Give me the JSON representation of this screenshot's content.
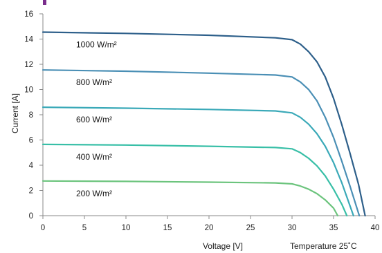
{
  "chart_data": {
    "type": "line",
    "title": "",
    "xlabel": "Voltage [V]",
    "ylabel": "Current [A]",
    "annotation": "Temperature 25˚C",
    "xlim": [
      0,
      40
    ],
    "ylim": [
      0,
      16
    ],
    "xticks": [
      0,
      5,
      10,
      15,
      20,
      25,
      30,
      35,
      40
    ],
    "yticks": [
      0,
      2,
      4,
      6,
      8,
      10,
      12,
      14,
      16
    ],
    "grid": false,
    "legend": "inline labels",
    "series": [
      {
        "name": "1000 W/m²",
        "color": "#2d5f8a",
        "points": [
          [
            0,
            14.55
          ],
          [
            10,
            14.45
          ],
          [
            20,
            14.3
          ],
          [
            28,
            14.1
          ],
          [
            30,
            13.95
          ],
          [
            31,
            13.6
          ],
          [
            32,
            13.0
          ],
          [
            33,
            12.2
          ],
          [
            34,
            11.0
          ],
          [
            35,
            9.3
          ],
          [
            36,
            7.2
          ],
          [
            37,
            4.9
          ],
          [
            38,
            2.5
          ],
          [
            38.8,
            0
          ]
        ]
      },
      {
        "name": "800 W/m²",
        "color": "#4a8fb5",
        "points": [
          [
            0,
            11.55
          ],
          [
            10,
            11.45
          ],
          [
            20,
            11.3
          ],
          [
            28,
            11.15
          ],
          [
            30,
            11.0
          ],
          [
            31,
            10.6
          ],
          [
            32,
            10.0
          ],
          [
            33,
            9.1
          ],
          [
            34,
            7.8
          ],
          [
            35,
            6.2
          ],
          [
            36,
            4.3
          ],
          [
            37,
            2.3
          ],
          [
            38.1,
            0
          ]
        ]
      },
      {
        "name": "600 W/m²",
        "color": "#3aa9b8",
        "points": [
          [
            0,
            8.6
          ],
          [
            10,
            8.52
          ],
          [
            20,
            8.42
          ],
          [
            28,
            8.3
          ],
          [
            30,
            8.15
          ],
          [
            31,
            7.8
          ],
          [
            32,
            7.25
          ],
          [
            33,
            6.5
          ],
          [
            34,
            5.5
          ],
          [
            35,
            4.2
          ],
          [
            36,
            2.6
          ],
          [
            37.4,
            0
          ]
        ]
      },
      {
        "name": "400 W/m²",
        "color": "#38bfa7",
        "points": [
          [
            0,
            5.65
          ],
          [
            10,
            5.6
          ],
          [
            20,
            5.5
          ],
          [
            28,
            5.4
          ],
          [
            30,
            5.3
          ],
          [
            31,
            5.0
          ],
          [
            32,
            4.55
          ],
          [
            33,
            3.95
          ],
          [
            34,
            3.15
          ],
          [
            35,
            2.1
          ],
          [
            36,
            0.9
          ],
          [
            36.6,
            0
          ]
        ]
      },
      {
        "name": "200 W/m²",
        "color": "#6cc47d",
        "points": [
          [
            0,
            2.75
          ],
          [
            10,
            2.72
          ],
          [
            20,
            2.66
          ],
          [
            28,
            2.6
          ],
          [
            30,
            2.52
          ],
          [
            31,
            2.35
          ],
          [
            32,
            2.1
          ],
          [
            33,
            1.75
          ],
          [
            34,
            1.25
          ],
          [
            35,
            0.6
          ],
          [
            35.5,
            0
          ]
        ]
      }
    ]
  }
}
